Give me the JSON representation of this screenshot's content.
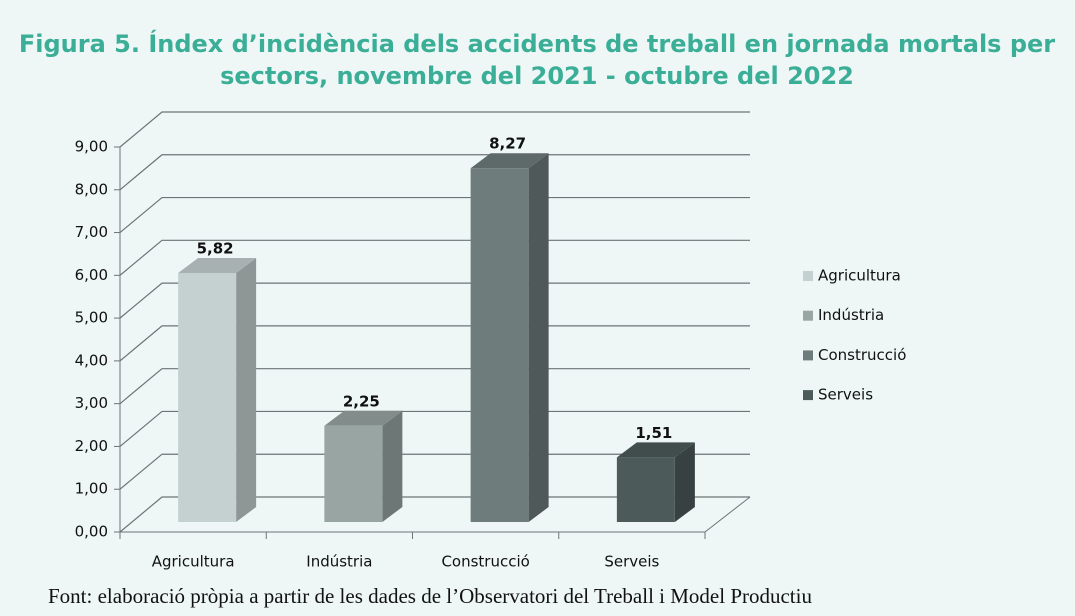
{
  "chart_data": {
    "type": "bar3d",
    "title": [
      "Figura 5. Índex d’incidència dels accidents de treball en jornada mortals per",
      "sectors, novembre del 2021 - octubre del 2022"
    ],
    "categories": [
      "Agricultura",
      "Indústria",
      "Construcció",
      "Serveis"
    ],
    "values": [
      5.82,
      2.25,
      8.27,
      1.51
    ],
    "value_labels": [
      "5,82",
      "2,25",
      "8,27",
      "1,51"
    ],
    "colors": [
      "#c5d0d0",
      "#98a5a3",
      "#6f7c7c",
      "#4d5a5a"
    ],
    "ylim": [
      0,
      9
    ],
    "yticks": [
      {
        "value": 0,
        "label": "0,00"
      },
      {
        "value": 1,
        "label": "1,00"
      },
      {
        "value": 2,
        "label": "2,00"
      },
      {
        "value": 3,
        "label": "3,00"
      },
      {
        "value": 4,
        "label": "4,00"
      },
      {
        "value": 5,
        "label": "5,00"
      },
      {
        "value": 6,
        "label": "6,00"
      },
      {
        "value": 7,
        "label": "7,00"
      },
      {
        "value": 8,
        "label": "8,00"
      },
      {
        "value": 9,
        "label": "9,00"
      }
    ],
    "grid": true,
    "legend": "right",
    "source": "Font: elaboració pròpia a partir de les dades de l’Observatori del Treball i Model Productiu"
  }
}
